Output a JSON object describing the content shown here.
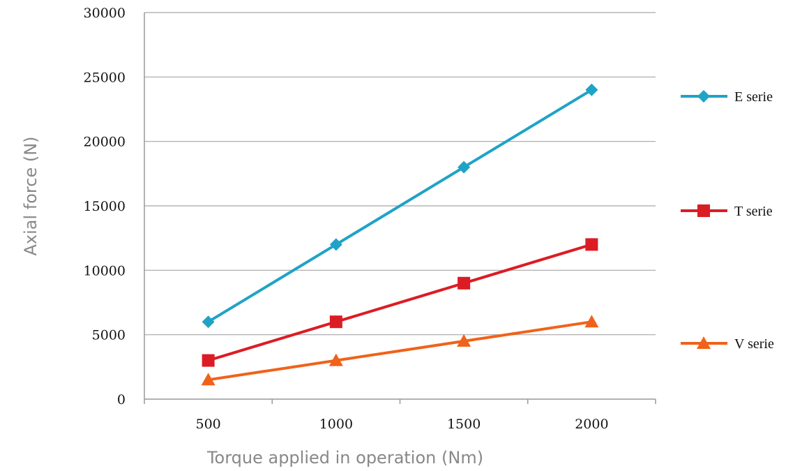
{
  "chart_data": {
    "type": "line",
    "title": "",
    "xlabel": "Torque applied in operation (Nm)",
    "ylabel": "Axial force (N)",
    "categories": [
      "500",
      "1000",
      "1500",
      "2000"
    ],
    "ylim": [
      0,
      30000
    ],
    "yticks": [
      "0",
      "5000",
      "10000",
      "15000",
      "20000",
      "25000",
      "30000"
    ],
    "grid": true,
    "legend_position": "right",
    "series": [
      {
        "name": "E serie",
        "values": [
          6000,
          12000,
          18000,
          24000
        ],
        "color": "#1fa3c6",
        "marker": "diamond"
      },
      {
        "name": "T serie",
        "values": [
          3000,
          6000,
          9000,
          12000
        ],
        "color": "#dc1c24",
        "marker": "square"
      },
      {
        "name": "V serie",
        "values": [
          1500,
          3000,
          4500,
          6000
        ],
        "color": "#f0621a",
        "marker": "triangle"
      }
    ]
  }
}
